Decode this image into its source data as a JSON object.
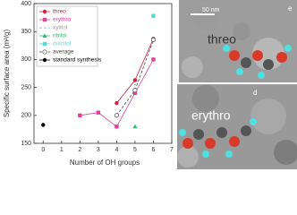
{
  "chart_data": {
    "type": "line",
    "x_label": "Number of OH groups",
    "y_label": "Specific surface area (m²/g)",
    "x": [
      0,
      2,
      3,
      4,
      5,
      6
    ],
    "xlim": [
      -0.5,
      7
    ],
    "xticks": [
      0,
      1,
      2,
      3,
      4,
      5,
      6,
      7
    ],
    "ylim": [
      150,
      400
    ],
    "yticks": [
      150,
      200,
      250,
      300,
      350,
      400
    ],
    "legend": "upper left",
    "series": [
      {
        "name": "threo",
        "color": "#d6203c",
        "marker": "circle",
        "dash": "solid",
        "values": [
          null,
          null,
          null,
          222,
          263,
          337
        ]
      },
      {
        "name": "erythro",
        "color": "#e0409a",
        "marker": "square",
        "dash": "solid",
        "values": [
          null,
          200,
          205,
          180,
          240,
          300
        ]
      },
      {
        "name": "xylitol",
        "color": "#9a9a9a",
        "marker": "none",
        "dash": "dashed",
        "values": [
          null,
          null,
          null,
          null,
          255,
          null
        ]
      },
      {
        "name": "ribitol",
        "color": "#2ec06a",
        "marker": "triangle",
        "dash": "solid",
        "values": [
          null,
          null,
          null,
          null,
          180,
          null
        ]
      },
      {
        "name": "dulcitol",
        "color": "#55d8d8",
        "marker": "square",
        "dash": "solid",
        "values": [
          null,
          null,
          null,
          null,
          null,
          378
        ]
      },
      {
        "name": "average",
        "color": "#444444",
        "marker": "open-circle",
        "dash": "dashed",
        "values": [
          null,
          null,
          null,
          200,
          245,
          335
        ]
      },
      {
        "name": "standard synthesis",
        "color": "#000000",
        "marker": "circle",
        "dash": "solid",
        "values": [
          183,
          null,
          null,
          null,
          null,
          null
        ]
      }
    ]
  },
  "images": {
    "top": {
      "label": "threo",
      "scale": "50 nm",
      "panel": "e"
    },
    "bottom": {
      "label": "erythro",
      "panel": "d"
    }
  }
}
